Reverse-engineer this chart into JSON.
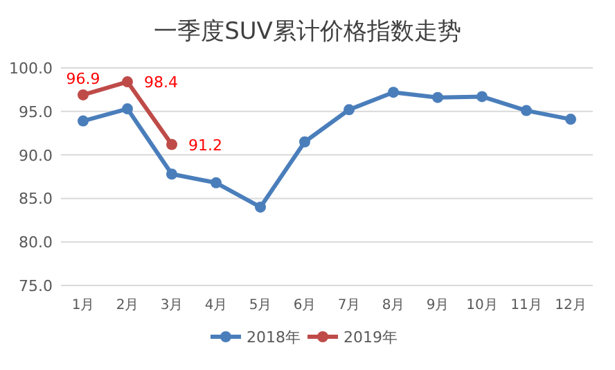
{
  "chart_data": {
    "type": "line",
    "title": "一季度SUV累计价格指数走势",
    "categories": [
      "1月",
      "2月",
      "3月",
      "4月",
      "5月",
      "6月",
      "7月",
      "8月",
      "9月",
      "10月",
      "11月",
      "12月"
    ],
    "series": [
      {
        "name": "2018年",
        "color": "#4a7ebb",
        "values": [
          93.9,
          95.3,
          87.8,
          86.8,
          84.0,
          91.5,
          95.2,
          97.2,
          96.6,
          96.7,
          95.1,
          94.1
        ]
      },
      {
        "name": "2019年",
        "color": "#be4b48",
        "values": [
          96.9,
          98.4,
          91.2,
          null,
          null,
          null,
          null,
          null,
          null,
          null,
          null,
          null
        ],
        "value_labels": [
          "96.9",
          "98.4",
          "91.2",
          null,
          null,
          null,
          null,
          null,
          null,
          null,
          null,
          null
        ]
      }
    ],
    "ylim": [
      75,
      100
    ],
    "yticks": [
      {
        "value": 75,
        "label": "75.0"
      },
      {
        "value": 80,
        "label": "80.0"
      },
      {
        "value": 85,
        "label": "85.0"
      },
      {
        "value": 90,
        "label": "90.0"
      },
      {
        "value": 95,
        "label": "95.0"
      },
      {
        "value": 100,
        "label": "100.0"
      }
    ],
    "grid": "y",
    "legend": "bottom",
    "marker": "circle",
    "line_style": "solid"
  }
}
